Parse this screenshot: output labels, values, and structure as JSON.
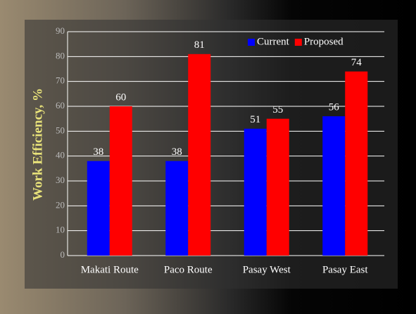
{
  "chart_data": {
    "type": "bar",
    "y_label": "Work Efficiency, %",
    "categories": [
      "Makati Route",
      "Paco Route",
      "Pasay West",
      "Pasay East"
    ],
    "series": [
      {
        "name": "Current",
        "color": "#0000ff",
        "values": [
          38,
          38,
          51,
          56
        ]
      },
      {
        "name": "Proposed",
        "color": "#ff0000",
        "values": [
          60,
          81,
          55,
          74
        ]
      }
    ],
    "ylim": [
      0,
      90
    ],
    "yticks": [
      0,
      10,
      20,
      30,
      40,
      50,
      60,
      70,
      80,
      90
    ],
    "grid": true,
    "legend": "top-right"
  }
}
